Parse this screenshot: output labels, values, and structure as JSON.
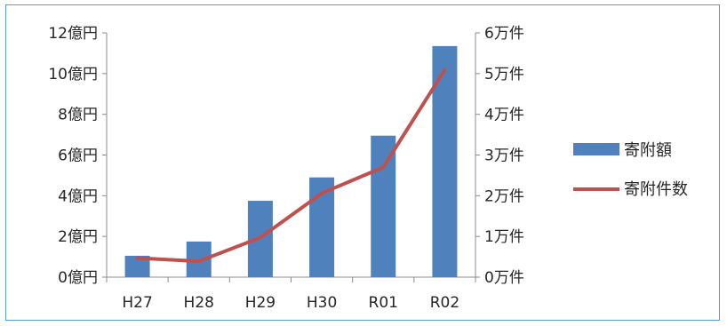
{
  "chart_data": {
    "type": "bar",
    "categories": [
      "H27",
      "H28",
      "H29",
      "H30",
      "R01",
      "R02"
    ],
    "series": [
      {
        "name": "寄附額",
        "type": "bar",
        "axis": "left",
        "color": "#4f81bd",
        "values": [
          1.05,
          1.75,
          3.75,
          4.9,
          6.95,
          11.35
        ]
      },
      {
        "name": "寄附件数",
        "type": "line",
        "axis": "right",
        "color": "#c0504d",
        "values": [
          0.47,
          0.39,
          0.97,
          2.06,
          2.7,
          5.09
        ]
      }
    ],
    "y_left": {
      "min": 0,
      "max": 12,
      "ticks": [
        0,
        2,
        4,
        6,
        8,
        10,
        12
      ],
      "tick_labels": [
        "0億円",
        "2億円",
        "4億円",
        "6億円",
        "8億円",
        "10億円",
        "12億円"
      ]
    },
    "y_right": {
      "min": 0,
      "max": 6,
      "ticks": [
        0,
        1,
        2,
        3,
        4,
        5,
        6
      ],
      "tick_labels": [
        "0万件",
        "1万件",
        "2万件",
        "3万件",
        "4万件",
        "5万件",
        "6万件"
      ]
    },
    "title": "",
    "xlabel": "",
    "grid": false,
    "legend_position": "right"
  }
}
